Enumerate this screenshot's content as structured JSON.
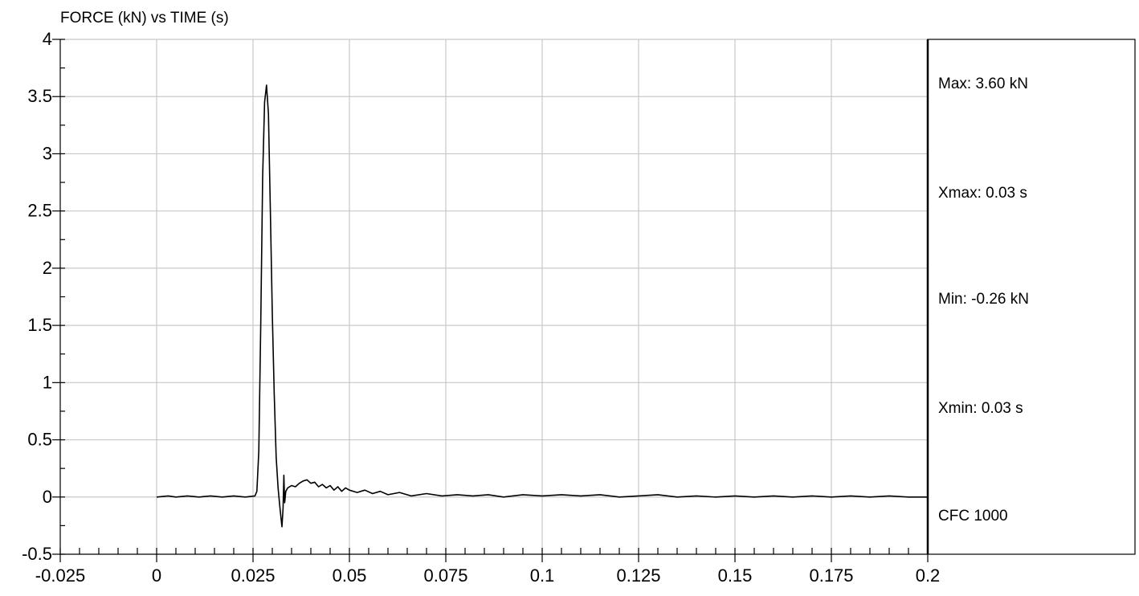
{
  "chart_data": {
    "type": "line",
    "title": "FORCE (kN) vs TIME (s)",
    "xlabel": "",
    "ylabel": "",
    "xlim": [
      -0.025,
      0.2
    ],
    "ylim": [
      -0.5,
      4
    ],
    "grid": true,
    "x_ticks": [
      -0.025,
      0,
      0.025,
      0.05,
      0.075,
      0.1,
      0.125,
      0.15,
      0.175,
      0.2
    ],
    "x_tick_labels": [
      "-0.025",
      "0",
      "0.025",
      "0.05",
      "0.075",
      "0.1",
      "0.125",
      "0.15",
      "0.175",
      "0.2"
    ],
    "y_ticks": [
      -0.5,
      0,
      0.5,
      1,
      1.5,
      2,
      2.5,
      3,
      3.5,
      4
    ],
    "y_tick_labels": [
      "-0.5",
      "0",
      "0.5",
      "1",
      "1.5",
      "2",
      "2.5",
      "3",
      "3.5",
      "4"
    ],
    "series": [
      {
        "x": [
          0,
          0.003,
          0.005,
          0.008,
          0.011,
          0.014,
          0.017,
          0.02,
          0.023,
          0.0255,
          0.026,
          0.0265,
          0.027,
          0.0275,
          0.028,
          0.0285,
          0.029,
          0.0295,
          0.03,
          0.0305,
          0.031,
          0.0315,
          0.032,
          0.0325,
          0.0328,
          0.033,
          0.0332,
          0.0335,
          0.034,
          0.035,
          0.036,
          0.037,
          0.038,
          0.039,
          0.04,
          0.041,
          0.042,
          0.043,
          0.044,
          0.045,
          0.046,
          0.047,
          0.048,
          0.049,
          0.05,
          0.052,
          0.054,
          0.056,
          0.058,
          0.06,
          0.063,
          0.066,
          0.07,
          0.074,
          0.078,
          0.082,
          0.086,
          0.09,
          0.095,
          0.1,
          0.105,
          0.11,
          0.115,
          0.12,
          0.125,
          0.13,
          0.135,
          0.14,
          0.145,
          0.15,
          0.155,
          0.16,
          0.165,
          0.17,
          0.175,
          0.18,
          0.185,
          0.19,
          0.195,
          0.2
        ],
        "y": [
          0,
          0.01,
          0,
          0.01,
          0,
          0.01,
          0,
          0.01,
          0,
          0.01,
          0.05,
          0.4,
          1.5,
          2.8,
          3.45,
          3.6,
          3.35,
          2.5,
          1.6,
          0.9,
          0.35,
          0.08,
          -0.1,
          -0.26,
          -0.1,
          0.19,
          -0.05,
          0.05,
          0.08,
          0.1,
          0.09,
          0.12,
          0.14,
          0.15,
          0.12,
          0.13,
          0.09,
          0.11,
          0.08,
          0.1,
          0.06,
          0.09,
          0.05,
          0.08,
          0.06,
          0.04,
          0.06,
          0.03,
          0.05,
          0.02,
          0.04,
          0.01,
          0.03,
          0.01,
          0.02,
          0.01,
          0.02,
          0,
          0.02,
          0.01,
          0.02,
          0.01,
          0.02,
          0,
          0.01,
          0.02,
          0,
          0.01,
          0,
          0.01,
          0,
          0.01,
          0,
          0.01,
          0,
          0.01,
          0,
          0.01,
          0,
          0
        ]
      }
    ],
    "annotations": [
      "Max: 3.60 kN",
      "Xmax: 0.03 s",
      "Min: -0.26 kN",
      "Xmin: 0.03 s",
      "CFC 1000"
    ]
  }
}
